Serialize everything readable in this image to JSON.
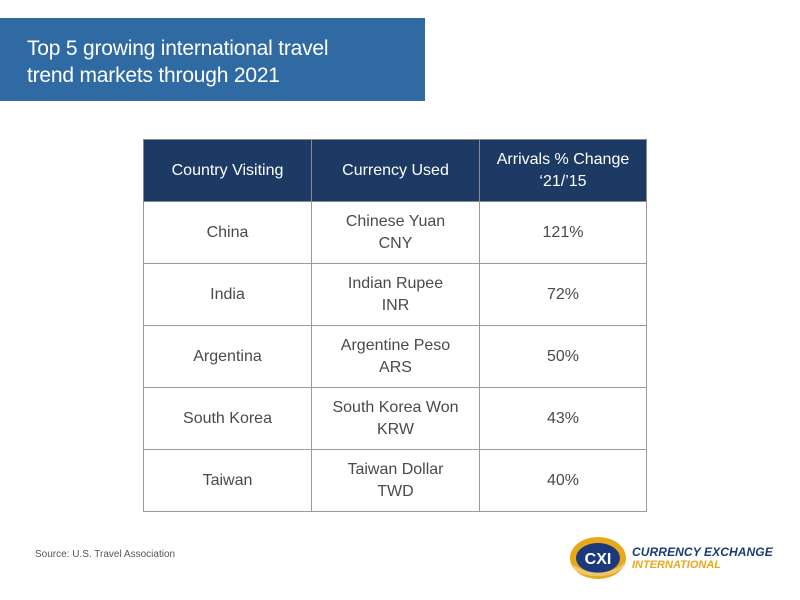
{
  "title": {
    "line1": "Top 5 growing international travel",
    "line2": "trend markets through 2021"
  },
  "table": {
    "headers": {
      "country": "Country Visiting",
      "currency": "Currency Used",
      "change_line1": "Arrivals % Change",
      "change_line2": "‘21/’15"
    },
    "rows": [
      {
        "country": "China",
        "currency_name": "Chinese Yuan",
        "currency_code": "CNY",
        "change": "121%"
      },
      {
        "country": "India",
        "currency_name": "Indian Rupee",
        "currency_code": "INR",
        "change": "72%"
      },
      {
        "country": "Argentina",
        "currency_name": "Argentine Peso",
        "currency_code": "ARS",
        "change": "50%"
      },
      {
        "country": "South Korea",
        "currency_name": "South Korea Won",
        "currency_code": "KRW",
        "change": "43%"
      },
      {
        "country": "Taiwan",
        "currency_name": "Taiwan Dollar",
        "currency_code": "TWD",
        "change": "40%"
      }
    ]
  },
  "source": "Source:  U.S. Travel Association",
  "logo": {
    "mark_text": "CXI",
    "line1": "CURRENCY EXCHANGE",
    "line2": "INTERNATIONAL"
  },
  "colors": {
    "banner": "#2f6aa3",
    "header": "#1c3a63",
    "logo_blue": "#1c3a7a",
    "logo_gold": "#e8a81a"
  }
}
